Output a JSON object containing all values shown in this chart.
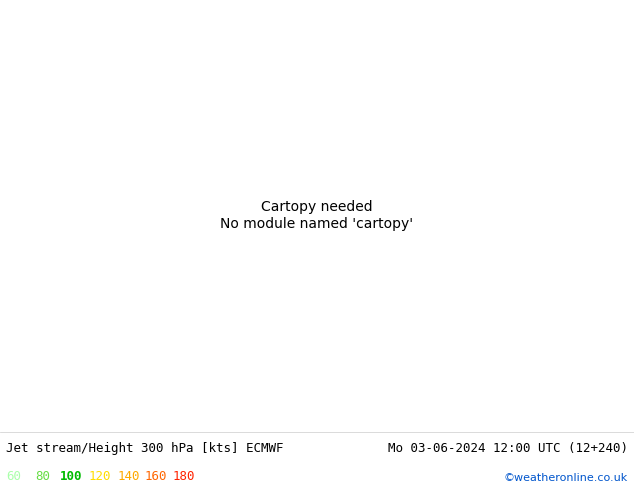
{
  "title_left": "Jet stream/Height 300 hPa [kts] ECMWF",
  "title_right": "Mo 03-06-2024 12:00 UTC (12+240)",
  "credit": "©weatheronline.co.uk",
  "legend_values": [
    60,
    80,
    100,
    120,
    140,
    160,
    180
  ],
  "legend_colors": [
    "#aaffaa",
    "#66dd44",
    "#00bb00",
    "#ffdd00",
    "#ffaa00",
    "#ff6600",
    "#ff2200"
  ],
  "background_color": "#ffffff",
  "bottom_bar_color": "#f0f0f0",
  "fig_width": 6.34,
  "fig_height": 4.9,
  "dpi": 100,
  "map_extent": [
    -40,
    55,
    22,
    77
  ],
  "land_color": "#f0f0f0",
  "sea_color": "#f0f0f0",
  "jet_fill_colors": [
    "#c8f5c8",
    "#88dd88",
    "#33bb33",
    "#009900",
    "#eedd00",
    "#ffaa00",
    "#ff6600"
  ],
  "jet_fill_levels": [
    60,
    80,
    100,
    120,
    140,
    160,
    180,
    220
  ],
  "contour_color": "#000000",
  "contour_levels": [
    880,
    912,
    944
  ],
  "contour_linewidth": 1.3,
  "font_size_title": 9,
  "font_size_legend": 9,
  "font_size_credit": 8,
  "coast_color": "#999999",
  "border_color": "#aaaaaa"
}
